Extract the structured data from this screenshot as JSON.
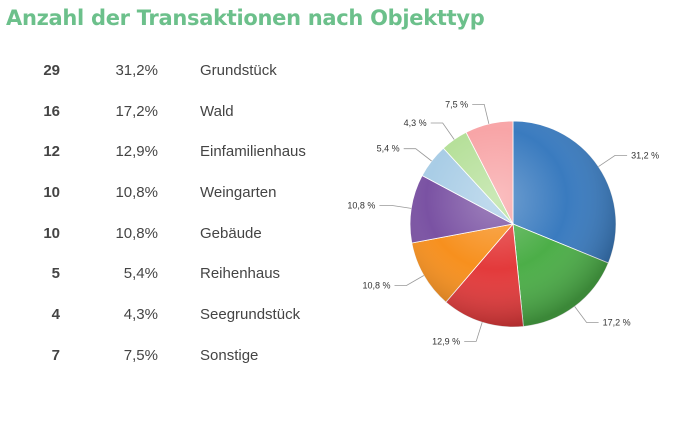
{
  "title": "Anzahl der Transaktionen nach Objekttyp",
  "colors": {
    "title": "#6cc08b",
    "slices": [
      "#3a7bbf",
      "#4cae48",
      "#e33a3b",
      "#f7901e",
      "#7a52a3",
      "#a9cde6",
      "#b6e09a",
      "#f8a5a7"
    ]
  },
  "table": {
    "rows": [
      {
        "count": "29",
        "pct": "31,2%",
        "label": "Grundstück"
      },
      {
        "count": "16",
        "pct": "17,2%",
        "label": "Wald"
      },
      {
        "count": "12",
        "pct": "12,9%",
        "label": "Einfamilienhaus"
      },
      {
        "count": "10",
        "pct": "10,8%",
        "label": "Weingarten"
      },
      {
        "count": "10",
        "pct": "10,8%",
        "label": "Gebäude"
      },
      {
        "count": "5",
        "pct": "5,4%",
        "label": "Reihenhaus"
      },
      {
        "count": "4",
        "pct": "4,3%",
        "label": "Seegrundstück"
      },
      {
        "count": "7",
        "pct": "7,5%",
        "label": "Sonstige"
      }
    ]
  },
  "chart_data": {
    "type": "pie",
    "title": "Anzahl der Transaktionen nach Objekttyp",
    "categories": [
      "Grundstück",
      "Wald",
      "Einfamilienhaus",
      "Weingarten",
      "Gebäude",
      "Reihenhaus",
      "Seegrundstück",
      "Sonstige"
    ],
    "values": [
      29,
      16,
      12,
      10,
      10,
      5,
      4,
      7
    ],
    "slice_labels": [
      "31,2 %",
      "17,2 %",
      "12,9 %",
      "10,8 %",
      "10,8 %",
      "5,4 %",
      "4,3 %",
      "7,5 %"
    ]
  }
}
